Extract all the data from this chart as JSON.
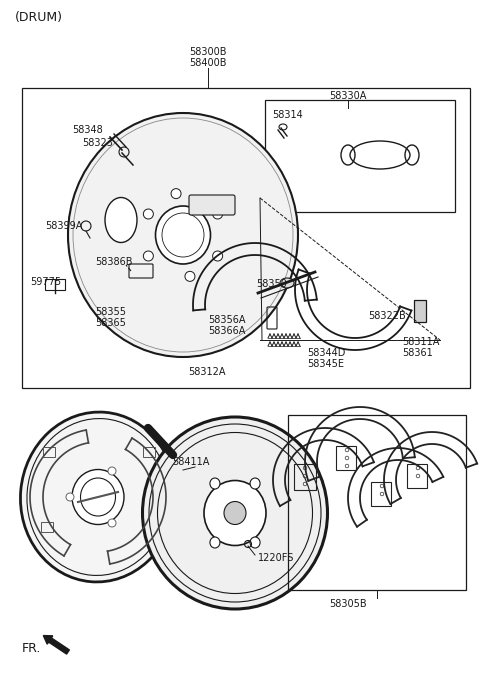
{
  "bg_color": "#ffffff",
  "line_color": "#1a1a1a",
  "gray_color": "#888888",
  "title": "(DRUM)",
  "label_58300B": "58300B",
  "label_58400B": "58400B",
  "label_58330A": "58330A",
  "label_58314": "58314",
  "label_58348": "58348",
  "label_58323": "58323",
  "label_58399A": "58399A",
  "label_58386B": "58386B",
  "label_59775": "59775",
  "label_58355": "58355",
  "label_58365": "58365",
  "label_58350": "58350",
  "label_58356A": "58356A",
  "label_58366A": "58366A",
  "label_58322B": "58322B",
  "label_58311A": "58311A",
  "label_58361": "58361",
  "label_58344D": "58344D",
  "label_58345E": "58345E",
  "label_58312A": "58312A",
  "label_58411A": "58411A",
  "label_1220FS": "1220FS",
  "label_58305B": "58305B",
  "label_FR": "FR."
}
